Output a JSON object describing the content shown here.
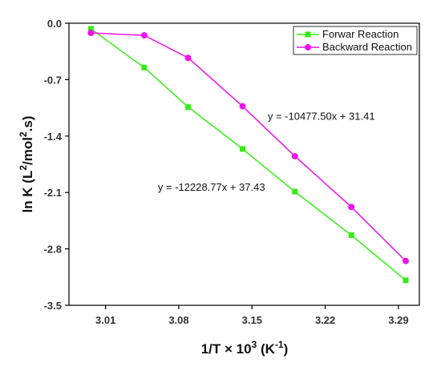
{
  "chart_data": {
    "type": "line",
    "xlabel": {
      "main": "1/T × 10",
      "sup": "3",
      "unit_open": " (K",
      "unit_sup": "-1",
      "unit_close": ")"
    },
    "ylabel": {
      "part1": "ln K (L",
      "sup1": "2",
      "part2": "/mol",
      "sup2": "2",
      "part3": ".s)"
    },
    "xlim": [
      2.975,
      3.31
    ],
    "ylim": [
      -3.5,
      0.0
    ],
    "xticks": [
      3.01,
      3.08,
      3.15,
      3.22,
      3.29
    ],
    "xtick_labels": [
      "3.01",
      "3.08",
      "3.15",
      "3.22",
      "3.29"
    ],
    "yticks": [
      0.0,
      -0.7,
      -1.4,
      -2.1,
      -2.8,
      -3.5
    ],
    "ytick_labels": [
      "0.0",
      "-0.7",
      "-1.4",
      "-2.1",
      "-2.8",
      "-3.5"
    ],
    "legend": {
      "position": "top-right"
    },
    "series": [
      {
        "name": "Forwar Reaction",
        "color": "#33ee11",
        "marker": "square",
        "x": [
          2.996,
          3.047,
          3.089,
          3.141,
          3.191,
          3.245,
          3.297
        ],
        "y": [
          -0.07,
          -0.55,
          -1.04,
          -1.56,
          -2.09,
          -2.63,
          -3.19
        ]
      },
      {
        "name": "Backward Reaction",
        "color": "#ee11ee",
        "marker": "circle",
        "x": [
          2.996,
          3.047,
          3.089,
          3.141,
          3.191,
          3.245,
          3.297
        ],
        "y": [
          -0.12,
          -0.15,
          -0.43,
          -1.03,
          -1.65,
          -2.28,
          -2.95
        ]
      }
    ],
    "annotations": [
      {
        "text": "y = -10477.50x + 31.41",
        "x": 3.165,
        "y": -1.2
      },
      {
        "text": "y = -12228.77x + 37.43",
        "x": 3.06,
        "y": -2.08
      }
    ]
  }
}
